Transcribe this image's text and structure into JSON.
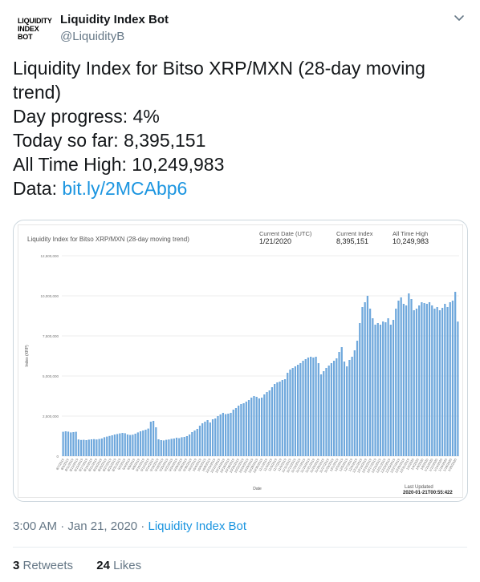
{
  "author": {
    "display_name": "Liquidity Index Bot",
    "handle": "@LiquidityB",
    "avatar_text": [
      "LIQUIDITY",
      "INDEX",
      "BOT"
    ]
  },
  "tweet": {
    "lines": [
      "Liquidity Index for Bitso XRP/MXN (28-day moving",
      "trend)",
      "Day progress: 4%",
      "Today so far: 8,395,151",
      "All Time High: 10,249,983"
    ],
    "data_label": "Data: ",
    "data_link": "bit.ly/2MCAbp6"
  },
  "card": {
    "title": "Liquidity Index for Bitso XRP/MXN (28-day moving trend)",
    "kpis": [
      {
        "label": "Current Date (UTC)",
        "value": "1/21/2020"
      },
      {
        "label": "Current Index",
        "value": "8,395,151"
      },
      {
        "label": "All Time High",
        "value": "10,249,983"
      }
    ],
    "last_updated_label": "Last Updated",
    "last_updated_value": "2020-01-21T00:55:422"
  },
  "chart_data": {
    "type": "bar",
    "title": "Liquidity Index for Bitso XRP/MXN (28-day moving trend)",
    "xlabel": "Date",
    "ylabel": "Index (XRP)",
    "ylim": [
      0,
      12500000
    ],
    "yticks": [
      "0",
      "2,500,000",
      "5,000,000",
      "7,500,000",
      "10,000,000",
      "12,500,000"
    ],
    "grid": true,
    "color": "#6fa8dc",
    "values": [
      1520000,
      1550000,
      1530000,
      1480000,
      1500000,
      1520000,
      1040000,
      1010000,
      1020000,
      1000000,
      1030000,
      1050000,
      1060000,
      1040000,
      1070000,
      1100000,
      1180000,
      1220000,
      1260000,
      1300000,
      1350000,
      1380000,
      1420000,
      1450000,
      1430000,
      1350000,
      1320000,
      1340000,
      1400000,
      1480000,
      1550000,
      1600000,
      1650000,
      1720000,
      2150000,
      2200000,
      1800000,
      1050000,
      1000000,
      980000,
      1020000,
      1040000,
      1080000,
      1100000,
      1150000,
      1120000,
      1180000,
      1200000,
      1250000,
      1350000,
      1500000,
      1600000,
      1700000,
      1900000,
      2050000,
      2150000,
      2250000,
      2100000,
      2300000,
      2350000,
      2500000,
      2600000,
      2700000,
      2620000,
      2650000,
      2700000,
      2900000,
      3000000,
      3150000,
      3250000,
      3300000,
      3400000,
      3500000,
      3650000,
      3750000,
      3700000,
      3600000,
      3650000,
      3850000,
      4000000,
      4100000,
      4300000,
      4500000,
      4600000,
      4650000,
      4750000,
      4800000,
      5200000,
      5400000,
      5500000,
      5600000,
      5700000,
      5800000,
      5950000,
      6050000,
      6150000,
      6200000,
      6150000,
      6200000,
      5800000,
      5100000,
      5300000,
      5500000,
      5650000,
      5800000,
      5950000,
      6100000,
      6500000,
      6800000,
      5900000,
      5600000,
      6000000,
      6200000,
      6600000,
      7200000,
      8300000,
      9300000,
      9600000,
      10000000,
      9200000,
      8600000,
      8200000,
      8300000,
      8200000,
      8400000,
      8350000,
      8600000,
      8200000,
      8500000,
      9200000,
      9700000,
      9900000,
      9500000,
      9400000,
      10150000,
      9800000,
      9100000,
      9200000,
      9400000,
      9600000,
      9550000,
      9500000,
      9600000,
      9400000,
      9200000,
      9300000,
      9100000,
      9250000,
      9500000,
      9300000,
      9600000,
      9700000,
      10249983,
      8395151
    ],
    "x_tick_labels": [
      "8/7/2019",
      "8/9/2019",
      "8/11/2019",
      "8/13/2019",
      "8/15/2019",
      "8/17/2019",
      "8/19/2019",
      "8/21/2019",
      "8/23/2019",
      "8/25/2019",
      "8/27/2019",
      "8/29/2019",
      "8/31/2019",
      "9/2/2019",
      "9/4/2019",
      "9/6/2019",
      "9/8/2019",
      "9/10/2019",
      "9/12/2019",
      "9/14/2019",
      "9/16/2019",
      "9/18/2019",
      "9/20/2019",
      "9/22/2019",
      "9/24/2019",
      "9/26/2019",
      "9/28/2019",
      "9/30/2019",
      "10/2/2019",
      "10/4/2019",
      "10/6/2019",
      "10/8/2019",
      "10/10/2019",
      "10/12/2019",
      "10/14/2019",
      "10/16/2019",
      "10/18/2019",
      "10/20/2019",
      "10/22/2019",
      "10/24/2019",
      "10/26/2019",
      "10/28/2019",
      "10/30/2019",
      "11/1/2019",
      "11/3/2019",
      "11/5/2019",
      "11/7/2019",
      "11/9/2019",
      "11/11/2019",
      "11/13/2019",
      "11/15/2019",
      "11/17/2019",
      "11/19/2019",
      "11/21/2019",
      "11/23/2019",
      "11/25/2019",
      "11/27/2019",
      "11/29/2019",
      "12/1/2019",
      "12/3/2019",
      "12/5/2019",
      "12/7/2019",
      "12/9/2019",
      "12/11/2019",
      "12/13/2019",
      "12/15/2019",
      "12/17/2019",
      "12/19/2019",
      "12/21/2019",
      "12/23/2019",
      "12/25/2019",
      "12/27/2019",
      "12/29/2019",
      "12/31/2019",
      "1/2/2020",
      "1/4/2020",
      "1/6/2020",
      "1/8/2020",
      "1/10/2020",
      "1/12/2020",
      "1/14/2020",
      "1/16/2020",
      "1/18/2020",
      "1/20/2020"
    ]
  },
  "meta": {
    "time": "3:00 AM",
    "separator1": " · ",
    "date": "Jan 21, 2020",
    "separator2": " · ",
    "source": "Liquidity Index Bot"
  },
  "stats": {
    "retweets_count": "3",
    "retweets_label": " Retweets",
    "likes_count": "24",
    "likes_label": " Likes"
  },
  "icons": {
    "menu": "chevron-down-icon"
  }
}
